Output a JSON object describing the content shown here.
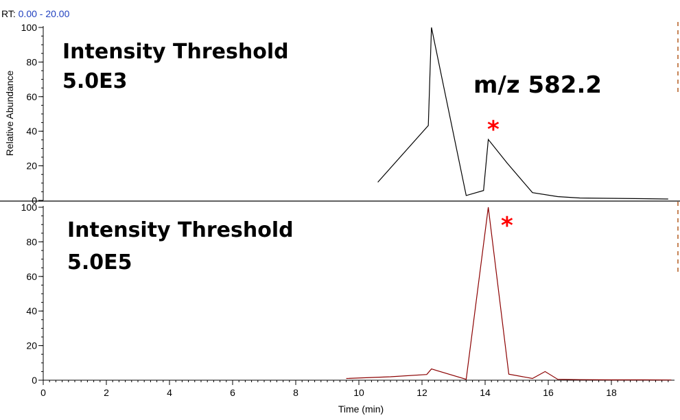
{
  "header": {
    "rt_prefix": "RT:",
    "rt_range": "0.00 - 20.00"
  },
  "annotations": {
    "top_line1": "Intensity Threshold",
    "top_line2": "5.0E3",
    "mz": "m/z 582.2",
    "bottom_line1": "Intensity Threshold",
    "bottom_line2": "5.0E5",
    "marker": "*"
  },
  "colors": {
    "top_trace": "#000000",
    "bottom_trace": "#8b0000",
    "marker": "#ff0000",
    "rt_range": "#1f3fbf"
  },
  "chart_data": [
    {
      "type": "line",
      "title": "",
      "xlabel": "",
      "ylabel": "Relative Abundance",
      "xlim": [
        0,
        20
      ],
      "ylim": [
        0,
        100
      ],
      "y_ticks": [
        0,
        20,
        40,
        60,
        80,
        100
      ],
      "series": [
        {
          "x": [
            10.6,
            12.2,
            12.3,
            13.4,
            13.95,
            14.1,
            14.7,
            15.5,
            16.3,
            17.0,
            18.0,
            19.0,
            19.8
          ],
          "y": [
            10.5,
            43.3,
            100,
            2.8,
            5.7,
            35.2,
            21.5,
            4.5,
            2.2,
            1.4,
            1.2,
            1.0,
            0.8
          ]
        }
      ],
      "annotations": [
        "Intensity Threshold 5.0E3",
        "m/z 582.2",
        "*"
      ]
    },
    {
      "type": "line",
      "title": "",
      "xlabel": "Time (min)",
      "ylabel": "",
      "xlim": [
        0,
        20
      ],
      "ylim": [
        0,
        100
      ],
      "x_ticks": [
        0,
        2,
        4,
        6,
        8,
        10,
        12,
        14,
        16,
        18
      ],
      "y_ticks": [
        0,
        20,
        40,
        60,
        80,
        100
      ],
      "series": [
        {
          "x": [
            9.6,
            11.0,
            12.15,
            12.3,
            13.4,
            14.1,
            14.75,
            15.5,
            15.9,
            16.3,
            17.0,
            18.0,
            19.0,
            19.9
          ],
          "y": [
            1.0,
            2.0,
            3.3,
            6.5,
            0.5,
            100,
            3.5,
            1.0,
            5.0,
            0.5,
            0.3,
            0.2,
            0.2,
            0.1
          ]
        }
      ],
      "annotations": [
        "Intensity Threshold 5.0E5",
        "*"
      ]
    }
  ]
}
